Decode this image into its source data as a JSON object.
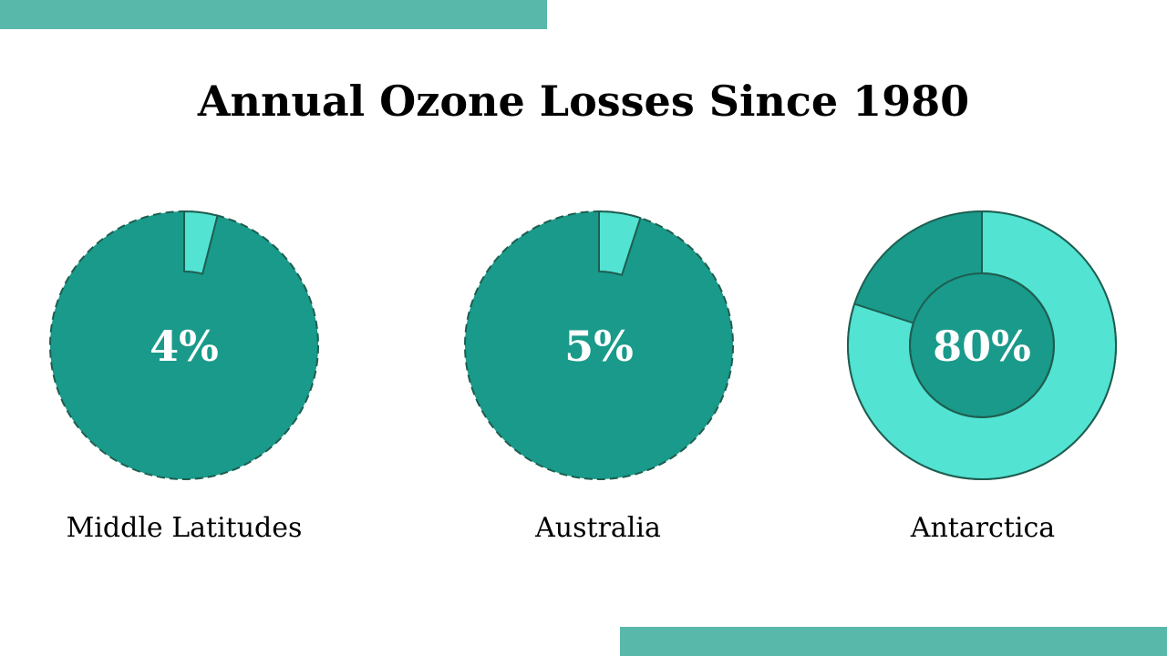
{
  "title": "Annual Ozone Losses Since 1980",
  "colors": {
    "accent_bar": "#58b8aa",
    "dark_teal": "#199a8a",
    "light_teal": "#52e3d3",
    "outline": "#1e5e50"
  },
  "chart_data": [
    {
      "type": "pie",
      "label": "Middle Latitudes",
      "value": 4,
      "value_text": "4%",
      "style": "pie"
    },
    {
      "type": "pie",
      "label": "Australia",
      "value": 5,
      "value_text": "5%",
      "style": "pie"
    },
    {
      "type": "pie",
      "label": "Antarctica",
      "value": 80,
      "value_text": "80%",
      "style": "donut"
    }
  ]
}
